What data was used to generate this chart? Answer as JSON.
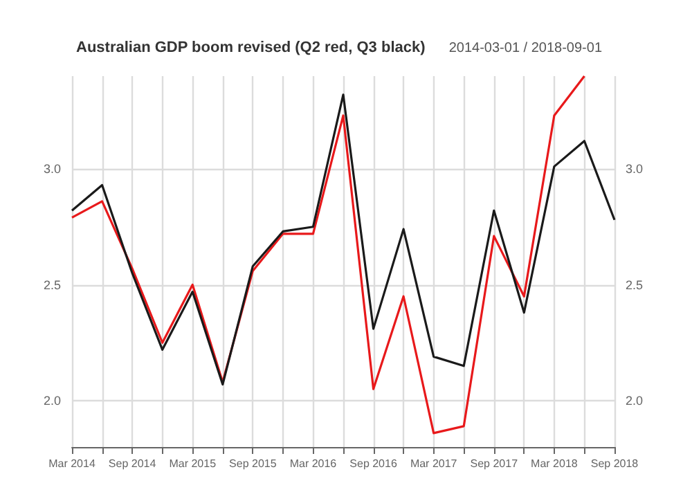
{
  "chart_data": {
    "type": "line",
    "title": "Australian GDP boom revised (Q2 red, Q3 black)",
    "subtitle": "2014-03-01 / 2018-09-01",
    "categories": [
      "Mar 2014",
      null,
      "Sep 2014",
      null,
      "Mar 2015",
      null,
      "Sep 2015",
      null,
      "Mar 2016",
      null,
      "Sep 2016",
      null,
      "Mar 2017",
      null,
      "Sep 2017",
      null,
      "Mar 2018",
      null,
      "Sep 2018"
    ],
    "series": [
      {
        "color": "#e8191b",
        "values": [
          2.79,
          2.86,
          2.57,
          2.25,
          2.5,
          2.08,
          2.56,
          2.72,
          2.72,
          3.23,
          2.05,
          2.45,
          1.86,
          1.89,
          2.71,
          2.45,
          3.23,
          3.4,
          null
        ]
      },
      {
        "color": "#1a1a1a",
        "values": [
          2.82,
          2.93,
          2.55,
          2.22,
          2.47,
          2.07,
          2.58,
          2.73,
          2.75,
          3.32,
          2.31,
          2.74,
          2.19,
          2.15,
          2.82,
          2.38,
          3.01,
          3.12,
          2.78
        ]
      }
    ],
    "ylim": [
      1.8,
      3.4
    ],
    "yticks": [
      {
        "value": 2,
        "label": "2.0"
      },
      2.5,
      {
        "value": 3,
        "label": "3.0"
      }
    ],
    "y2lim": [
      1.8,
      3.4
    ],
    "y2ticks": [
      {
        "value": 2,
        "label": "2.0"
      },
      2.5,
      {
        "value": 3,
        "label": "3.0"
      }
    ],
    "grid": true,
    "marker": "none",
    "line_style": "solid"
  }
}
